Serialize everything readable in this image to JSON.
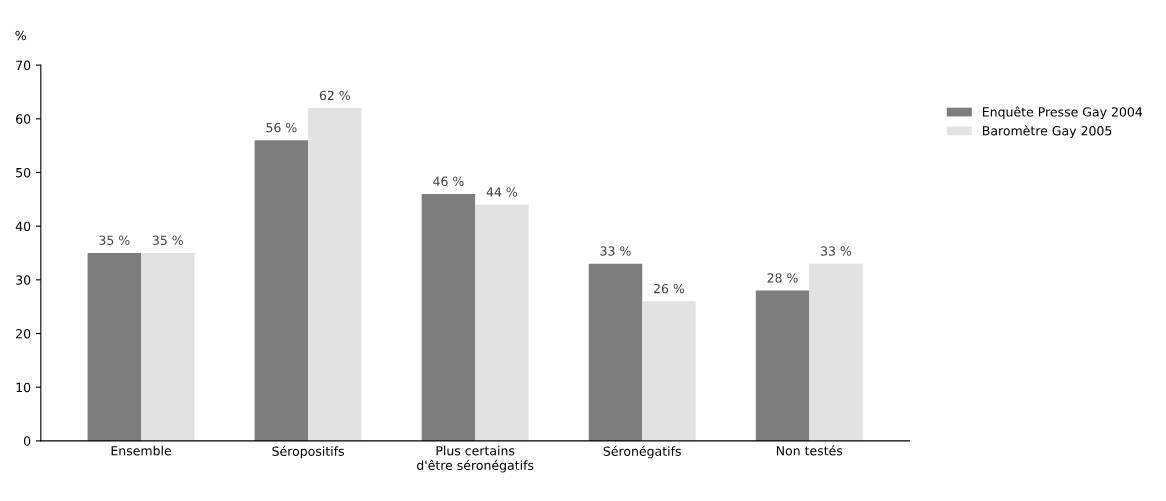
{
  "chart_data": {
    "type": "bar",
    "ylabel": "%",
    "categories": [
      "Ensemble",
      "Séropositifs",
      "Plus certains\nd'être séronégatifs",
      "Séronégatifs",
      "Non testés"
    ],
    "series": [
      {
        "name": "Enquête Presse Gay 2004",
        "color": "#7d7d7d",
        "values": [
          35,
          56,
          46,
          33,
          28
        ],
        "value_labels": [
          "35 %",
          "56 %",
          "46 %",
          "33 %",
          "28 %"
        ]
      },
      {
        "name": "Baromètre Gay 2005",
        "color": "#e2e2e2",
        "values": [
          35,
          62,
          44,
          26,
          33
        ],
        "value_labels": [
          "35 %",
          "62 %",
          "44 %",
          "26 %",
          "33 %"
        ]
      }
    ],
    "ylim": [
      0,
      70
    ],
    "yticks": [
      0,
      10,
      20,
      30,
      40,
      50,
      60,
      70
    ],
    "grid": false,
    "legend": "right"
  }
}
